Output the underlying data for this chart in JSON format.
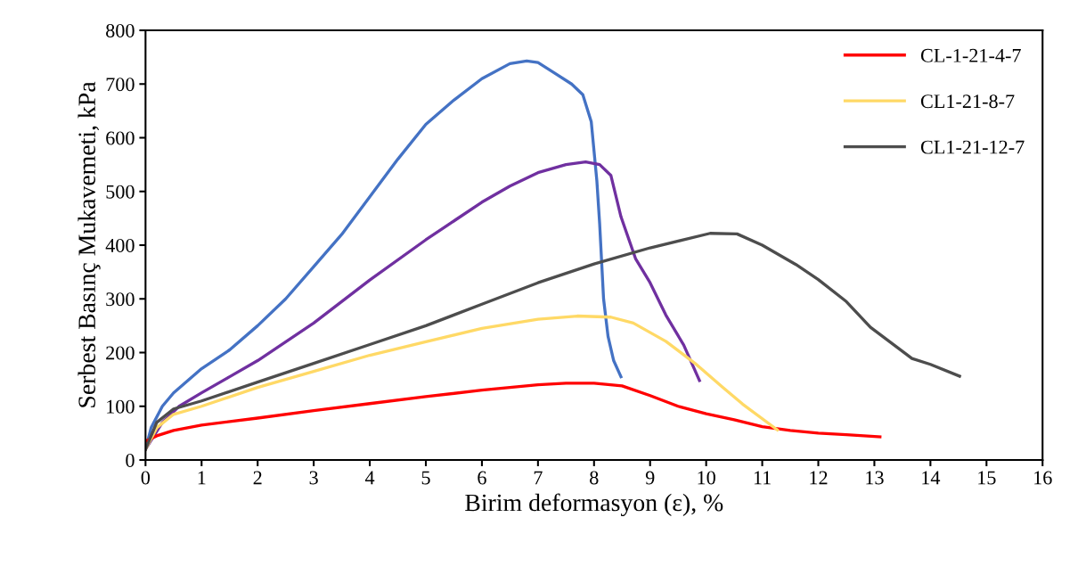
{
  "chart_data": {
    "type": "line",
    "xlabel": "Birim deformasyon (ε), %",
    "ylabel": "Serbest Basınç Mukavemeti, kPa",
    "xlim": [
      0,
      16
    ],
    "xticks": [
      0,
      1,
      2,
      3,
      4,
      5,
      6,
      7,
      8,
      9,
      10,
      11,
      12,
      13,
      14,
      15,
      16
    ],
    "ylim": [
      0,
      800
    ],
    "yticks": [
      0,
      100,
      200,
      300,
      400,
      500,
      600,
      700,
      800
    ],
    "grid": false,
    "legend": "top right",
    "marker": "none",
    "line_style": "solid",
    "series": [
      {
        "color": "#4472c4",
        "x": [
          0,
          0.1,
          0.3,
          0.5,
          1,
          1.5,
          2,
          2.5,
          3,
          3.5,
          4,
          4.5,
          5,
          5.5,
          6,
          6.5,
          6.8,
          7,
          7.3,
          7.6,
          7.8,
          7.95,
          8.05,
          8.1,
          8.17,
          8.25,
          8.35,
          8.48
        ],
        "values": [
          20,
          60,
          100,
          125,
          170,
          205,
          250,
          300,
          360,
          420,
          490,
          560,
          625,
          670,
          710,
          738,
          743,
          740,
          720,
          700,
          680,
          630,
          520,
          440,
          300,
          230,
          185,
          155
        ]
      },
      {
        "color": "#7030a0",
        "x": [
          0,
          0.3,
          0.6,
          1,
          1.5,
          2,
          3,
          4,
          5,
          6,
          6.5,
          7,
          7.5,
          7.85,
          8.1,
          8.3,
          8.48,
          8.74,
          9,
          9.28,
          9.6,
          9.88
        ],
        "values": [
          20,
          70,
          100,
          125,
          155,
          185,
          255,
          335,
          410,
          480,
          510,
          535,
          550,
          555,
          550,
          530,
          453,
          375,
          330,
          270,
          214,
          148
        ]
      },
      {
        "name": "CL-1-21-4-7",
        "color": "#ff0000",
        "x": [
          0,
          0.2,
          0.5,
          1,
          2,
          3,
          4,
          5,
          6,
          7,
          7.5,
          8,
          8.5,
          9,
          9.5,
          10,
          10.5,
          11,
          11.5,
          12,
          12.5,
          13.1
        ],
        "values": [
          35,
          45,
          55,
          65,
          78,
          92,
          105,
          118,
          130,
          140,
          143,
          143,
          138,
          120,
          100,
          86,
          75,
          62,
          55,
          50,
          47,
          43
        ]
      },
      {
        "name": "CL1-21-8-7",
        "color": "#ffd966",
        "x": [
          0,
          0.2,
          0.5,
          1,
          2,
          3,
          4,
          5,
          6,
          7,
          7.7,
          8.3,
          8.7,
          9.28,
          9.8,
          10.3,
          10.65,
          11.27
        ],
        "values": [
          20,
          60,
          85,
          100,
          135,
          165,
          195,
          220,
          245,
          262,
          268,
          266,
          255,
          221,
          180,
          135,
          104,
          56
        ]
      },
      {
        "name": "CL1-21-12-7",
        "color": "#4d4d4d",
        "x": [
          0,
          0.2,
          0.5,
          1,
          2,
          3,
          4,
          5,
          6,
          7,
          8,
          9,
          10.07,
          10.55,
          11,
          11.6,
          12,
          12.5,
          12.93,
          13.67,
          14,
          14.52
        ],
        "values": [
          20,
          70,
          95,
          110,
          145,
          180,
          215,
          250,
          290,
          330,
          365,
          395,
          422,
          421,
          400,
          364,
          336,
          295,
          247,
          189,
          178,
          156
        ]
      }
    ]
  }
}
